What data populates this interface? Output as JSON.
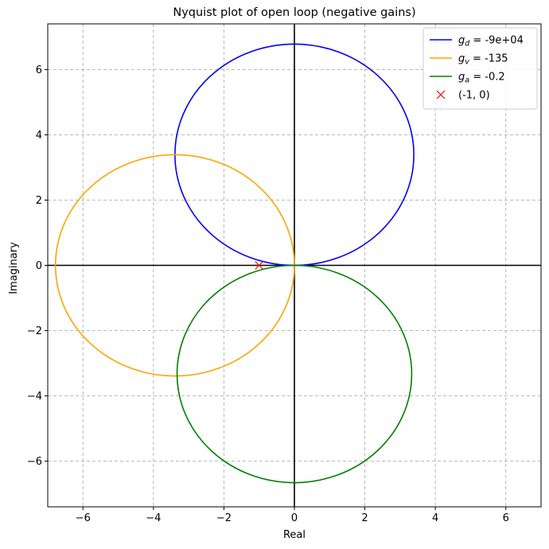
{
  "chart_data": {
    "type": "line",
    "title": "Nyquist plot of open loop (negative gains)",
    "xlabel": "Real",
    "ylabel": "Imaginary",
    "xlim": [
      -7,
      7
    ],
    "ylim": [
      -7.4,
      7.4
    ],
    "xticks": [
      -6,
      -4,
      -2,
      0,
      2,
      4,
      6
    ],
    "yticks": [
      -6,
      -4,
      -2,
      0,
      2,
      4,
      6
    ],
    "xtick_labels": [
      "−6",
      "−4",
      "−2",
      "0",
      "2",
      "4",
      "6"
    ],
    "ytick_labels": [
      "−6",
      "−4",
      "−2",
      "0",
      "2",
      "4",
      "6"
    ],
    "grid": true,
    "legend_position": "top-right",
    "series": [
      {
        "name_main": "g",
        "name_sub": "d",
        "name_rest": " = -9e+04",
        "color": "#0000ff",
        "shape": "circle",
        "center": [
          0,
          3.39
        ],
        "radius": 3.39
      },
      {
        "name_main": "g",
        "name_sub": "v",
        "name_rest": " = -135",
        "color": "#ffa500",
        "shape": "circle",
        "center": [
          -3.39,
          0
        ],
        "radius": 3.39
      },
      {
        "name_main": "g",
        "name_sub": "a",
        "name_rest": " = -0.2",
        "color": "#008000",
        "shape": "circle",
        "center": [
          0,
          -3.33
        ],
        "radius": 3.33
      }
    ],
    "points": [
      {
        "name": "(-1, 0)",
        "x": -1,
        "y": 0,
        "marker": "x",
        "color": "#ff0000"
      }
    ]
  }
}
